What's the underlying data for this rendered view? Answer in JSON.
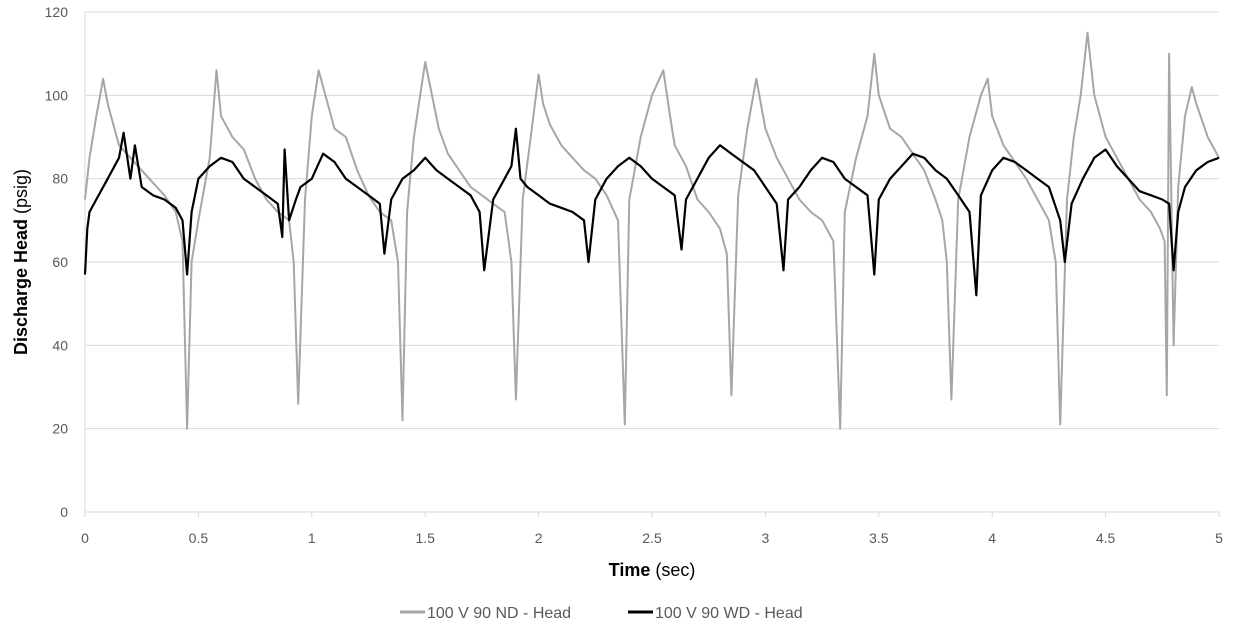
{
  "chart_data": {
    "type": "line",
    "title": "",
    "xlabel": {
      "main": "Time",
      "unit": "(sec)"
    },
    "ylabel": {
      "main": "Discharge Head",
      "unit": "(psig)"
    },
    "xlim": [
      0,
      5
    ],
    "ylim": [
      0,
      120
    ],
    "x_ticks": [
      "0",
      "0.5",
      "1",
      "1.5",
      "2",
      "2.5",
      "3",
      "3.5",
      "4",
      "4.5",
      "5"
    ],
    "y_ticks": [
      "0",
      "20",
      "40",
      "60",
      "80",
      "100",
      "120"
    ],
    "grid": "horizontal",
    "legend_position": "bottom",
    "series": [
      {
        "name": "100 V 90 ND - Head",
        "color": "#a6a6a6",
        "x": [
          0,
          0.02,
          0.05,
          0.08,
          0.1,
          0.15,
          0.2,
          0.25,
          0.3,
          0.35,
          0.4,
          0.43,
          0.45,
          0.47,
          0.5,
          0.55,
          0.58,
          0.6,
          0.65,
          0.7,
          0.75,
          0.8,
          0.85,
          0.9,
          0.92,
          0.94,
          0.97,
          1.0,
          1.03,
          1.06,
          1.1,
          1.15,
          1.2,
          1.25,
          1.3,
          1.35,
          1.38,
          1.4,
          1.42,
          1.45,
          1.5,
          1.53,
          1.56,
          1.6,
          1.65,
          1.7,
          1.75,
          1.8,
          1.85,
          1.88,
          1.9,
          1.93,
          1.97,
          2.0,
          2.02,
          2.05,
          2.1,
          2.15,
          2.2,
          2.25,
          2.3,
          2.35,
          2.38,
          2.4,
          2.45,
          2.5,
          2.55,
          2.58,
          2.6,
          2.65,
          2.7,
          2.75,
          2.8,
          2.83,
          2.85,
          2.88,
          2.92,
          2.96,
          3.0,
          3.05,
          3.1,
          3.15,
          3.2,
          3.25,
          3.3,
          3.33,
          3.35,
          3.4,
          3.45,
          3.48,
          3.5,
          3.55,
          3.6,
          3.65,
          3.7,
          3.75,
          3.78,
          3.8,
          3.82,
          3.85,
          3.9,
          3.95,
          3.98,
          4.0,
          4.05,
          4.1,
          4.15,
          4.2,
          4.25,
          4.28,
          4.3,
          4.33,
          4.36,
          4.39,
          4.42,
          4.45,
          4.5,
          4.55,
          4.6,
          4.65,
          4.7,
          4.74,
          4.76,
          4.77,
          4.78,
          4.8,
          4.82,
          4.85,
          4.88,
          4.9,
          4.95,
          5.0
        ],
        "y": [
          75,
          85,
          95,
          104,
          98,
          88,
          85,
          82,
          79,
          76,
          72,
          65,
          20,
          60,
          70,
          85,
          106,
          95,
          90,
          87,
          80,
          75,
          72,
          70,
          60,
          26,
          75,
          95,
          106,
          100,
          92,
          90,
          82,
          76,
          72,
          70,
          60,
          22,
          72,
          90,
          108,
          100,
          92,
          86,
          82,
          78,
          76,
          74,
          72,
          60,
          27,
          75,
          92,
          105,
          98,
          93,
          88,
          85,
          82,
          80,
          76,
          70,
          21,
          75,
          90,
          100,
          106,
          95,
          88,
          83,
          75,
          72,
          68,
          62,
          28,
          76,
          92,
          104,
          92,
          85,
          80,
          75,
          72,
          70,
          65,
          20,
          72,
          85,
          95,
          110,
          100,
          92,
          90,
          86,
          82,
          75,
          70,
          60,
          27,
          75,
          90,
          100,
          104,
          95,
          88,
          84,
          80,
          75,
          70,
          60,
          21,
          75,
          90,
          100,
          115,
          100,
          90,
          85,
          80,
          75,
          72,
          68,
          65,
          28,
          110,
          40,
          78,
          95,
          102,
          98,
          90,
          85
        ]
      },
      {
        "name": "100 V 90 WD - Head",
        "color": "#000000",
        "x": [
          0,
          0.01,
          0.02,
          0.05,
          0.1,
          0.15,
          0.17,
          0.2,
          0.22,
          0.25,
          0.3,
          0.35,
          0.4,
          0.43,
          0.45,
          0.47,
          0.5,
          0.55,
          0.6,
          0.65,
          0.7,
          0.75,
          0.8,
          0.85,
          0.87,
          0.88,
          0.9,
          0.93,
          0.95,
          1.0,
          1.05,
          1.1,
          1.15,
          1.2,
          1.25,
          1.3,
          1.32,
          1.35,
          1.4,
          1.45,
          1.5,
          1.55,
          1.6,
          1.65,
          1.7,
          1.74,
          1.76,
          1.8,
          1.85,
          1.88,
          1.9,
          1.92,
          1.95,
          2.0,
          2.05,
          2.1,
          2.15,
          2.2,
          2.22,
          2.25,
          2.3,
          2.35,
          2.4,
          2.45,
          2.5,
          2.55,
          2.6,
          2.63,
          2.65,
          2.7,
          2.75,
          2.8,
          2.85,
          2.9,
          2.95,
          3.0,
          3.05,
          3.08,
          3.1,
          3.15,
          3.2,
          3.25,
          3.3,
          3.35,
          3.4,
          3.45,
          3.48,
          3.5,
          3.55,
          3.6,
          3.65,
          3.7,
          3.75,
          3.8,
          3.85,
          3.9,
          3.93,
          3.95,
          4.0,
          4.05,
          4.1,
          4.15,
          4.2,
          4.25,
          4.3,
          4.32,
          4.35,
          4.4,
          4.45,
          4.5,
          4.55,
          4.6,
          4.65,
          4.7,
          4.75,
          4.78,
          4.8,
          4.82,
          4.85,
          4.9,
          4.95,
          5.0
        ],
        "y": [
          57,
          68,
          72,
          75,
          80,
          85,
          91,
          80,
          88,
          78,
          76,
          75,
          73,
          70,
          57,
          72,
          80,
          83,
          85,
          84,
          80,
          78,
          76,
          74,
          66,
          87,
          70,
          75,
          78,
          80,
          86,
          84,
          80,
          78,
          76,
          74,
          62,
          75,
          80,
          82,
          85,
          82,
          80,
          78,
          76,
          72,
          58,
          75,
          80,
          83,
          92,
          80,
          78,
          76,
          74,
          73,
          72,
          70,
          60,
          75,
          80,
          83,
          85,
          83,
          80,
          78,
          76,
          63,
          75,
          80,
          85,
          88,
          86,
          84,
          82,
          78,
          74,
          58,
          75,
          78,
          82,
          85,
          84,
          80,
          78,
          76,
          57,
          75,
          80,
          83,
          86,
          85,
          82,
          80,
          76,
          72,
          52,
          76,
          82,
          85,
          84,
          82,
          80,
          78,
          70,
          60,
          74,
          80,
          85,
          87,
          83,
          80,
          77,
          76,
          75,
          74,
          58,
          72,
          78,
          82,
          84,
          85
        ]
      }
    ]
  }
}
